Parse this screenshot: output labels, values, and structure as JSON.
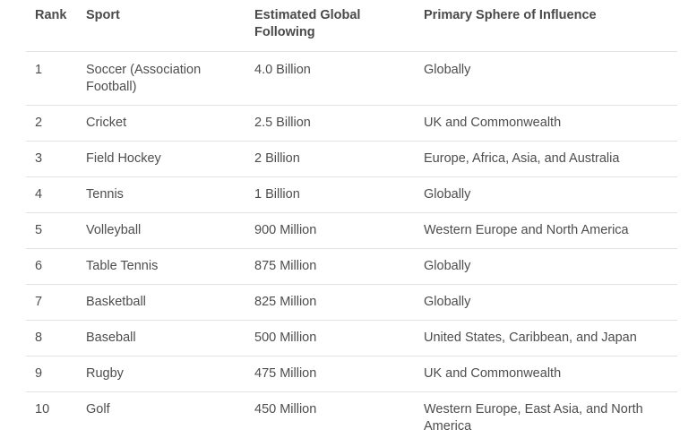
{
  "table": {
    "headers": {
      "rank": "Rank",
      "sport": "Sport",
      "following": "Estimated Global Following",
      "sphere": "Primary Sphere of Influence"
    },
    "rows": [
      {
        "rank": "1",
        "sport": "Soccer (Association Football)",
        "following": "4.0 Billion",
        "sphere": "Globally"
      },
      {
        "rank": "2",
        "sport": "Cricket",
        "following": "2.5 Billion",
        "sphere": "UK and Commonwealth"
      },
      {
        "rank": "3",
        "sport": "Field Hockey",
        "following": "2 Billion",
        "sphere": "Europe, Africa, Asia, and Australia"
      },
      {
        "rank": "4",
        "sport": "Tennis",
        "following": "1 Billion",
        "sphere": "Globally"
      },
      {
        "rank": "5",
        "sport": "Volleyball",
        "following": "900 Million",
        "sphere": "Western Europe and North America"
      },
      {
        "rank": "6",
        "sport": "Table Tennis",
        "following": "875 Million",
        "sphere": "Globally"
      },
      {
        "rank": "7",
        "sport": "Basketball",
        "following": "825 Million",
        "sphere": "Globally"
      },
      {
        "rank": "8",
        "sport": "Baseball",
        "following": "500 Million",
        "sphere": "United States, Caribbean, and Japan"
      },
      {
        "rank": "9",
        "sport": "Rugby",
        "following": "475 Million",
        "sphere": "UK and Commonwealth"
      },
      {
        "rank": "10",
        "sport": "Golf",
        "following": "450 Million",
        "sphere": "Western Europe, East Asia, and North America"
      }
    ]
  }
}
